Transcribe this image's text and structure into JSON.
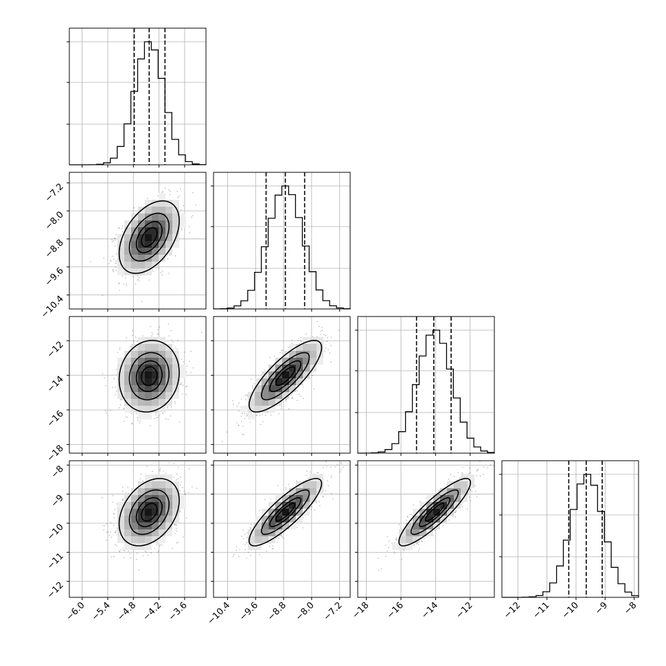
{
  "chart_data": {
    "type": "corner",
    "grid": true,
    "parameters": [
      {
        "range": [
          -6.3,
          -3.1
        ],
        "ticks": [
          -6.0,
          -5.4,
          -4.8,
          -4.2,
          -3.6
        ],
        "tick_labels": [
          "−6.0",
          "−5.4",
          "−4.8",
          "−4.2",
          "−3.6"
        ],
        "quantiles": [
          -4.78,
          -4.43,
          -4.06
        ],
        "mean": -4.43,
        "sd": 0.34
      },
      {
        "range": [
          -10.8,
          -6.9
        ],
        "ticks": [
          -10.4,
          -9.6,
          -8.8,
          -8.0,
          -7.2
        ],
        "tick_labels": [
          "−10.4",
          "−9.6",
          "−8.8",
          "−8.0",
          "−7.2"
        ],
        "quantiles": [
          -9.3,
          -8.75,
          -8.2
        ],
        "mean": -8.75,
        "sd": 0.5
      },
      {
        "range": [
          -18.5,
          -10.6
        ],
        "ticks": [
          -18,
          -16,
          -14,
          -12
        ],
        "tick_labels": [
          "−18",
          "−16",
          "−14",
          "−12"
        ],
        "quantiles": [
          -15.1,
          -14.1,
          -13.1
        ],
        "mean": -14.05,
        "sd": 1.0
      },
      {
        "range": [
          -12.55,
          -7.85
        ],
        "ticks": [
          -12,
          -11,
          -10,
          -9,
          -8
        ],
        "tick_labels": [
          "−12",
          "−11",
          "−10",
          "−9",
          "−8"
        ],
        "quantiles": [
          -10.25,
          -9.65,
          -9.1
        ],
        "mean": -9.62,
        "sd": 0.56
      }
    ],
    "correlations": [
      {
        "i": 1,
        "j": 0,
        "rho": 0.45
      },
      {
        "i": 2,
        "j": 0,
        "rho": 0.1
      },
      {
        "i": 3,
        "j": 0,
        "rho": 0.35
      },
      {
        "i": 2,
        "j": 1,
        "rho": 0.8
      },
      {
        "i": 3,
        "j": 1,
        "rho": 0.85
      },
      {
        "i": 3,
        "j": 2,
        "rho": 0.88
      }
    ],
    "contour_levels_sigma": [
      0.5,
      1.0,
      1.5,
      2.0
    ],
    "colors": {
      "axes": "#000000",
      "grid": "#b0b0b0",
      "points": "#555555",
      "density_max": "#000000",
      "histogram": "#000000",
      "quantile_line": "#000000"
    }
  }
}
